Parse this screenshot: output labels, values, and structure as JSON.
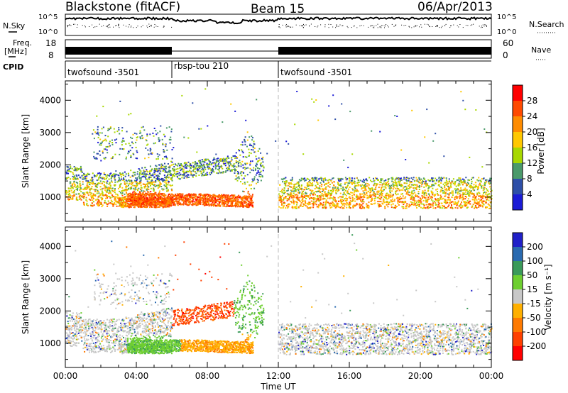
{
  "header": {
    "station": "Blackstone (fitACF)",
    "beam": "Beam 15",
    "date": "06/Apr/2013"
  },
  "strip_panels": {
    "nsky_label": "N.Sky",
    "nsky_ticks": [
      "10^5",
      "10^0"
    ],
    "nsearch_label": "N.Search",
    "nsearch_ticks": [
      "10^5",
      "10^0"
    ],
    "freq_label_1": "Freq.",
    "freq_label_2": "[MHz]",
    "freq_ticks": [
      "18",
      "8"
    ],
    "nave_label": "Nave",
    "nave_ticks": [
      "60",
      "0"
    ],
    "cpid_label": "CPID",
    "cpid_segments": [
      {
        "name": "twofsound -3501",
        "start_h": 0,
        "end_h": 6
      },
      {
        "name": "rbsp-tou 210",
        "start_h": 6,
        "end_h": 12
      },
      {
        "name": "twofsound -3501",
        "start_h": 12,
        "end_h": 24
      }
    ]
  },
  "chart_data": [
    {
      "type": "heatmap",
      "ylabel": "Slant Range [km]",
      "yticks": [
        "1000",
        "2000",
        "3000",
        "4000"
      ],
      "ylim": [
        250,
        4600
      ],
      "xlim_hours": [
        0,
        24
      ],
      "colorbar_label": "Power [dB]",
      "colorbar_ticks": [
        "28",
        "24",
        "20",
        "16",
        "12",
        "8",
        "4"
      ],
      "colorbar_colors": [
        "#ff0000",
        "#ff4a00",
        "#ff8c00",
        "#ffc800",
        "#a8d800",
        "#4a9a6a",
        "#2e4fa8",
        "#1b1bd6"
      ]
    },
    {
      "type": "heatmap",
      "ylabel": "Slant Range [km]",
      "yticks": [
        "1000",
        "2000",
        "3000",
        "4000"
      ],
      "ylim": [
        250,
        4600
      ],
      "xlim_hours": [
        0,
        24
      ],
      "colorbar_label": "Velocity [m s⁻¹]",
      "colorbar_ticks": [
        "200",
        "100",
        "50",
        "15",
        "-15",
        "-50",
        "-100",
        "-200"
      ],
      "colorbar_colors": [
        "#2020c8",
        "#2a6ab0",
        "#3a9a5a",
        "#6ecf30",
        "#c8c8c8",
        "#ffb000",
        "#ff7a00",
        "#ff4000",
        "#ff0000"
      ]
    }
  ],
  "x_axis": {
    "ticks": [
      "00:00",
      "04:00",
      "08:00",
      "12:00",
      "16:00",
      "20:00",
      "00:00"
    ],
    "label": "Time UT"
  }
}
